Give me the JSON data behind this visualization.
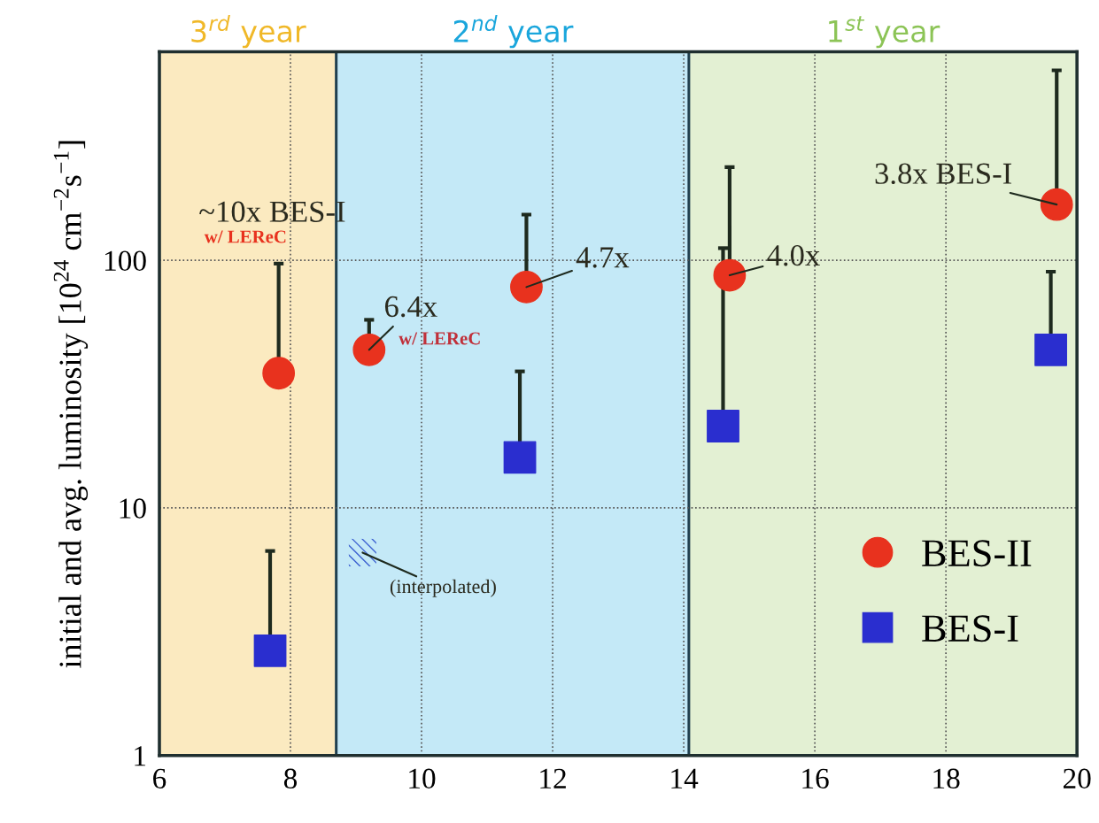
{
  "chart_data": {
    "type": "scatter",
    "log": "y",
    "ylabel": "initial and avg. luminosity [10$^{24}$ cm$^{−2}$s$^{−1}$]",
    "xlim": [
      6,
      20
    ],
    "xticks": [
      6,
      8,
      10,
      12,
      14,
      16,
      18,
      20
    ],
    "ylim": [
      1,
      695
    ],
    "yticks": [
      1,
      10,
      100
    ],
    "grid": true,
    "legend": "bottom right",
    "series": [
      {
        "name": "BES-II",
        "color": "#e8321e",
        "marker": "circle",
        "x": [
          7.82,
          9.2,
          11.6,
          14.7,
          19.69
        ],
        "values": [
          35,
          43.5,
          78,
          87,
          168
        ],
        "errors": [
          [
            35,
            97
          ],
          [
            43.5,
            57.5
          ],
          [
            78,
            153
          ],
          [
            87,
            238
          ],
          [
            168,
            585
          ]
        ]
      },
      {
        "name": "BES-I",
        "color": "#2a2ecf",
        "marker": "square",
        "x": [
          7.69,
          11.5,
          14.6,
          19.6
        ],
        "values": [
          2.65,
          16,
          21.4,
          43.5
        ],
        "errors": [
          [
            2.65,
            6.7
          ],
          [
            16,
            35.6
          ],
          [
            21.4,
            112
          ],
          [
            43.5,
            90
          ]
        ]
      },
      {
        "color": "#3a5fd0",
        "marker": "square",
        "x": [
          9.1
        ],
        "values": [
          6.6
        ]
      }
    ],
    "bands": [
      {
        "axis": "x",
        "from": 6,
        "to": 8.7,
        "label": "3$^{rd}$ year",
        "color": "#fbeac0"
      },
      {
        "axis": "x",
        "from": 8.7,
        "to": 14.08,
        "label": "2$^{nd}$ year",
        "color": "#c4e9f7"
      },
      {
        "axis": "x",
        "from": 14.08,
        "to": 20,
        "label": "1$^{st}$ year",
        "color": "#e3f0d3"
      }
    ],
    "annotations": [
      "~10x BES-I",
      "w/ LEReC",
      {
        "text": "6.4x",
        "x": 9.2,
        "y": 43.5
      },
      {
        "text": "w/ LEReC",
        "x": 9.2,
        "y": 43.5
      },
      {
        "text": "4.7x",
        "x": 11.6,
        "y": 78
      },
      {
        "text": "4.0x",
        "x": 14.7,
        "y": 87
      },
      {
        "text": "3.8x BES-I",
        "x": 19.69,
        "y": 168
      },
      {
        "text": "(interpolated)",
        "x": 9.1,
        "y": 6.6
      }
    ]
  }
}
